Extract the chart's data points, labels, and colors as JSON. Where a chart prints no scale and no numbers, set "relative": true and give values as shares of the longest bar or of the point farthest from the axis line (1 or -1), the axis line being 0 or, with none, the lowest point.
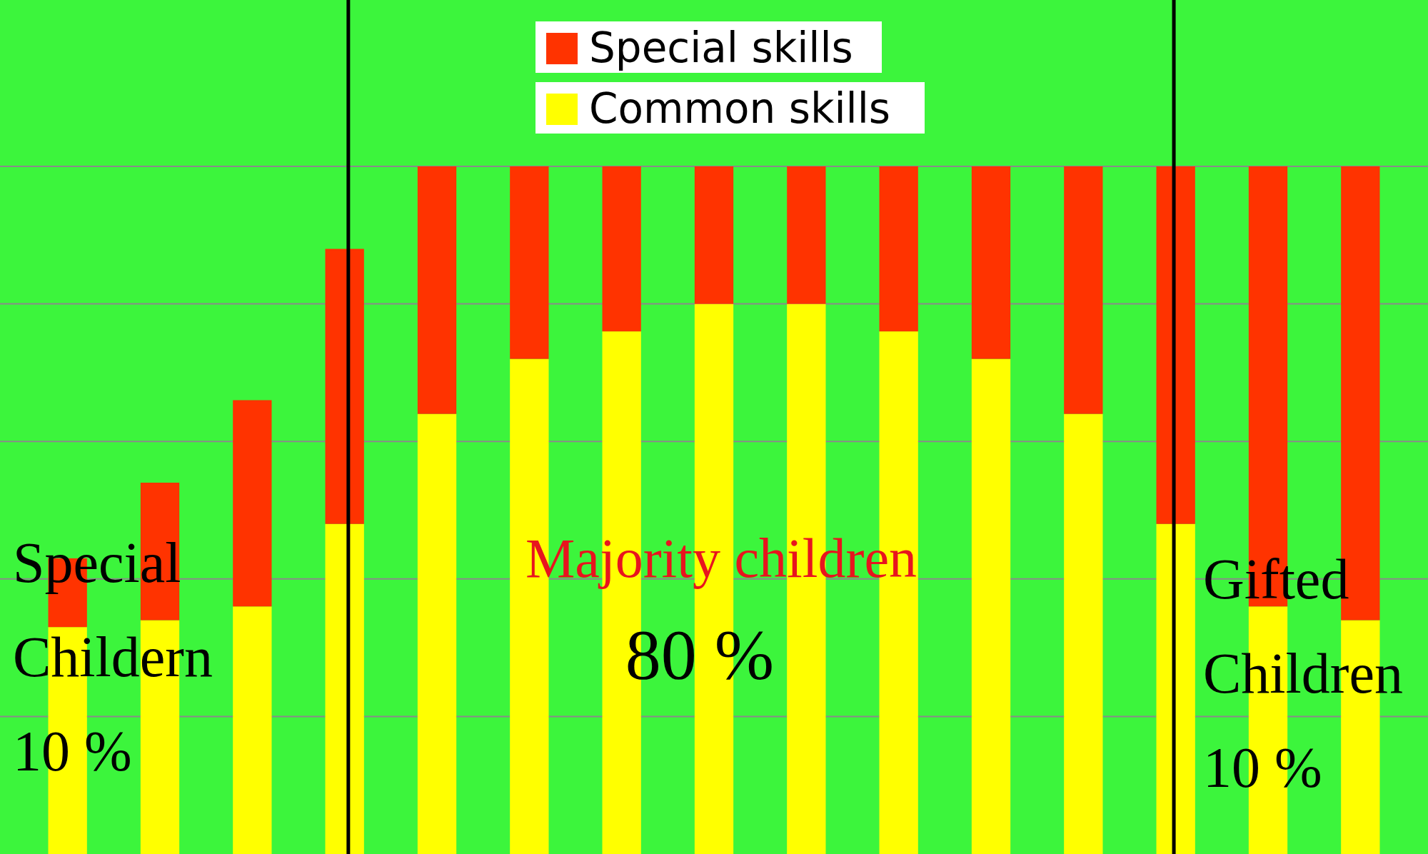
{
  "chart_data": {
    "type": "bar",
    "stacked": true,
    "relative": true,
    "categories": [
      null,
      null,
      null,
      null,
      null,
      null,
      null,
      null,
      null,
      null,
      null,
      null,
      null,
      null,
      null
    ],
    "grid": "y",
    "legend": "top",
    "series": [
      {
        "name": "Common skills",
        "color": "#ffff00",
        "values": [
          0.33,
          0.34,
          0.36,
          0.48,
          0.64,
          0.72,
          0.76,
          0.8,
          0.8,
          0.76,
          0.72,
          0.64,
          0.48,
          0.36,
          0.34
        ]
      },
      {
        "name": "Special skills",
        "color": "#ff3300",
        "values": [
          0.1,
          0.2,
          0.3,
          0.4,
          0.36,
          0.28,
          0.24,
          0.2,
          0.2,
          0.24,
          0.28,
          0.36,
          0.52,
          0.64,
          0.66
        ]
      }
    ],
    "annotations": [
      "Special Childern 10 %",
      "Majority children",
      "80 %",
      "Gifted Children 10 %"
    ]
  }
}
